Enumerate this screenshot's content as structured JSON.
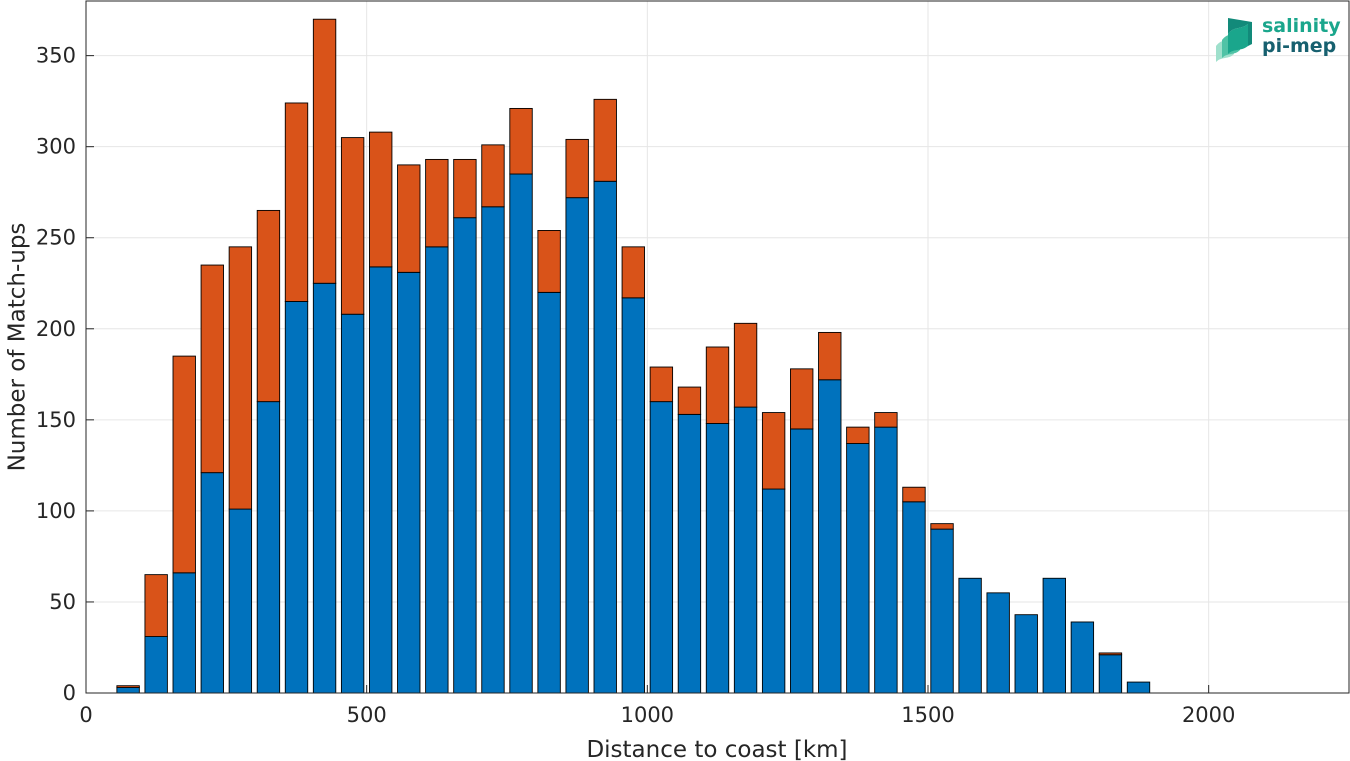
{
  "chart_data": {
    "type": "bar",
    "stacked": true,
    "xlabel": "Distance to coast [km]",
    "ylabel": "Number of Match-ups",
    "xlim": [
      0,
      2250
    ],
    "ylim": [
      0,
      380
    ],
    "xticks": [
      0,
      500,
      1000,
      1500,
      2000
    ],
    "yticks": [
      0,
      50,
      100,
      150,
      200,
      250,
      300,
      350
    ],
    "grid": true,
    "x": [
      75,
      125,
      175,
      225,
      275,
      325,
      375,
      425,
      475,
      525,
      575,
      625,
      675,
      725,
      775,
      825,
      875,
      925,
      975,
      1025,
      1075,
      1125,
      1175,
      1225,
      1275,
      1325,
      1375,
      1425,
      1475,
      1525,
      1575,
      1625,
      1675,
      1725,
      1775,
      1825,
      1875
    ],
    "series": [
      {
        "color": "#0072BD",
        "values": [
          3,
          31,
          66,
          121,
          101,
          160,
          215,
          225,
          208,
          234,
          231,
          245,
          261,
          267,
          285,
          220,
          272,
          281,
          217,
          160,
          153,
          148,
          157,
          112,
          145,
          172,
          137,
          146,
          105,
          90,
          63,
          55,
          43,
          63,
          39,
          21,
          6
        ]
      },
      {
        "color": "#D95319",
        "values": [
          1,
          34,
          119,
          114,
          144,
          105,
          109,
          145,
          97,
          74,
          59,
          48,
          32,
          34,
          36,
          34,
          32,
          45,
          28,
          19,
          15,
          42,
          46,
          42,
          33,
          26,
          9,
          8,
          8,
          3,
          0,
          0,
          0,
          0,
          0,
          1,
          0
        ]
      }
    ]
  },
  "logo": {
    "line1": "salinity",
    "line2": "pi-mep",
    "color1": "#1aa68c",
    "color2": "#17606f"
  }
}
